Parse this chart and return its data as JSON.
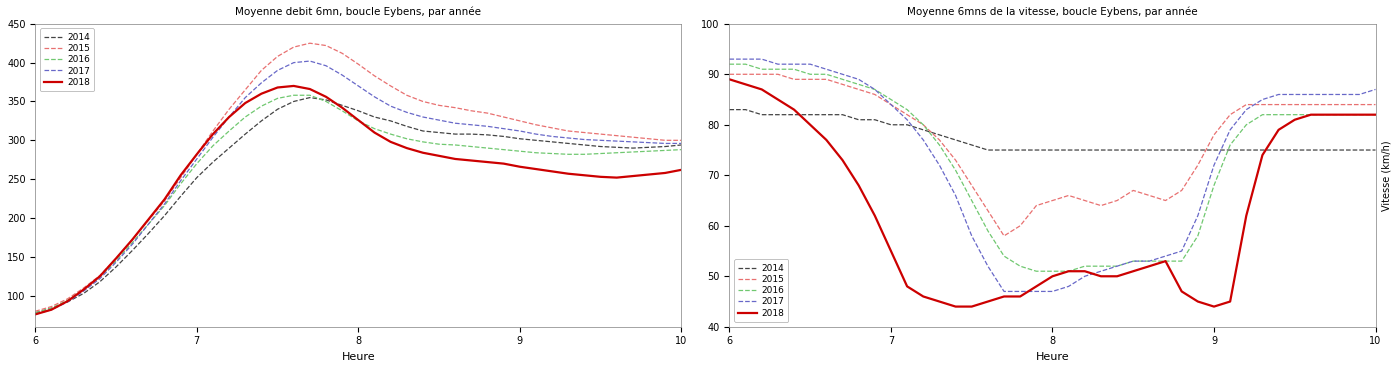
{
  "title_left": "Moyenne debit 6mn, boucle Eybens, par année",
  "title_right": "Moyenne 6mns de la vitesse, boucle Eybens, par année",
  "xlabel": "Heure",
  "ylabel_right": "Vitesse (km/h)",
  "years": [
    "2014",
    "2015",
    "2016",
    "2017",
    "2018"
  ],
  "colors": [
    "#444444",
    "#e87070",
    "#70c870",
    "#6868c8",
    "#cc0000"
  ],
  "linestyles": [
    "--",
    "--",
    "--",
    "--",
    "-"
  ],
  "linewidths": [
    0.9,
    0.9,
    0.9,
    0.9,
    1.6
  ],
  "x": [
    6.0,
    6.1,
    6.2,
    6.3,
    6.4,
    6.5,
    6.6,
    6.7,
    6.8,
    6.9,
    7.0,
    7.1,
    7.2,
    7.3,
    7.4,
    7.5,
    7.6,
    7.7,
    7.8,
    7.9,
    8.0,
    8.1,
    8.2,
    8.3,
    8.4,
    8.5,
    8.6,
    8.7,
    8.8,
    8.9,
    9.0,
    9.1,
    9.2,
    9.3,
    9.4,
    9.5,
    9.6,
    9.7,
    9.8,
    9.9,
    10.0
  ],
  "flow_2014": [
    78,
    84,
    92,
    103,
    118,
    137,
    158,
    180,
    203,
    228,
    252,
    272,
    290,
    308,
    325,
    340,
    350,
    355,
    352,
    345,
    338,
    330,
    325,
    318,
    312,
    310,
    308,
    308,
    307,
    305,
    302,
    300,
    298,
    296,
    294,
    292,
    291,
    290,
    291,
    292,
    294
  ],
  "flow_2015": [
    80,
    86,
    96,
    110,
    126,
    148,
    172,
    197,
    222,
    252,
    282,
    312,
    340,
    365,
    390,
    408,
    420,
    425,
    422,
    412,
    398,
    383,
    370,
    358,
    350,
    345,
    342,
    338,
    335,
    330,
    325,
    320,
    316,
    312,
    310,
    308,
    306,
    304,
    302,
    300,
    300
  ],
  "flow_2016": [
    78,
    84,
    94,
    108,
    124,
    145,
    168,
    192,
    216,
    244,
    270,
    293,
    312,
    330,
    344,
    354,
    358,
    358,
    350,
    338,
    325,
    315,
    308,
    302,
    298,
    295,
    294,
    292,
    290,
    288,
    286,
    284,
    283,
    282,
    282,
    283,
    284,
    285,
    286,
    287,
    288
  ],
  "flow_2017": [
    76,
    82,
    92,
    106,
    122,
    143,
    166,
    192,
    218,
    248,
    276,
    304,
    330,
    355,
    374,
    390,
    400,
    402,
    396,
    384,
    370,
    356,
    344,
    336,
    330,
    326,
    322,
    320,
    318,
    315,
    312,
    308,
    305,
    303,
    301,
    300,
    299,
    298,
    297,
    296,
    296
  ],
  "flow_2018": [
    76,
    82,
    93,
    108,
    125,
    148,
    172,
    198,
    224,
    255,
    282,
    308,
    330,
    348,
    360,
    368,
    370,
    366,
    356,
    342,
    326,
    310,
    298,
    290,
    284,
    280,
    276,
    274,
    272,
    270,
    266,
    263,
    260,
    257,
    255,
    253,
    252,
    254,
    256,
    258,
    262
  ],
  "speed_2014": [
    83,
    83,
    82,
    82,
    82,
    82,
    82,
    82,
    81,
    81,
    80,
    80,
    79,
    78,
    77,
    76,
    75,
    75,
    75,
    75,
    75,
    75,
    75,
    75,
    75,
    75,
    75,
    75,
    75,
    75,
    75,
    75,
    75,
    75,
    75,
    75,
    75,
    75,
    75,
    75,
    75
  ],
  "speed_2015": [
    90,
    90,
    90,
    90,
    89,
    89,
    89,
    88,
    87,
    86,
    84,
    82,
    80,
    77,
    73,
    68,
    63,
    58,
    60,
    64,
    65,
    66,
    65,
    64,
    65,
    67,
    66,
    65,
    67,
    72,
    78,
    82,
    84,
    84,
    84,
    84,
    84,
    84,
    84,
    84,
    84
  ],
  "speed_2016": [
    92,
    92,
    91,
    91,
    91,
    90,
    90,
    89,
    88,
    87,
    85,
    83,
    80,
    76,
    71,
    65,
    59,
    54,
    52,
    51,
    51,
    51,
    52,
    52,
    52,
    53,
    53,
    53,
    53,
    58,
    68,
    76,
    80,
    82,
    82,
    82,
    82,
    82,
    82,
    82,
    82
  ],
  "speed_2017": [
    93,
    93,
    93,
    92,
    92,
    92,
    91,
    90,
    89,
    87,
    84,
    81,
    77,
    72,
    66,
    58,
    52,
    47,
    47,
    47,
    47,
    48,
    50,
    51,
    52,
    53,
    53,
    54,
    55,
    62,
    72,
    79,
    83,
    85,
    86,
    86,
    86,
    86,
    86,
    86,
    87
  ],
  "speed_2018": [
    89,
    88,
    87,
    85,
    83,
    80,
    77,
    73,
    68,
    62,
    55,
    48,
    46,
    45,
    44,
    44,
    45,
    46,
    46,
    48,
    50,
    51,
    51,
    50,
    50,
    51,
    52,
    53,
    47,
    45,
    44,
    45,
    62,
    74,
    79,
    81,
    82,
    82,
    82,
    82,
    82
  ],
  "flow_ylim": [
    60,
    450
  ],
  "flow_yticks": [
    100,
    150,
    200,
    250,
    300,
    350,
    400,
    450
  ],
  "speed_ylim": [
    40,
    100
  ],
  "speed_yticks": [
    40,
    50,
    60,
    70,
    80,
    90,
    100
  ],
  "xticks": [
    6,
    7,
    8,
    9,
    10
  ]
}
